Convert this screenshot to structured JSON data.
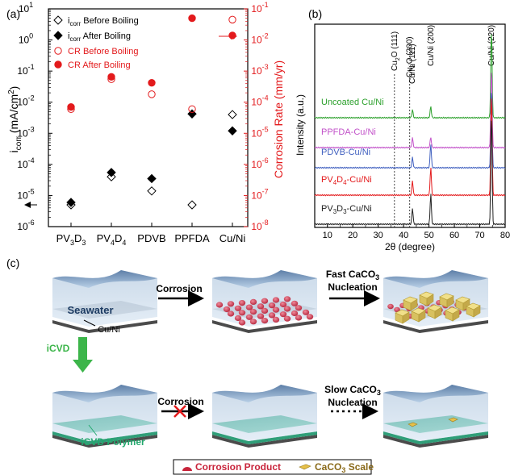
{
  "panels": {
    "a": "(a)",
    "b": "(b)",
    "c": "(c)"
  },
  "chart_data": [
    {
      "type": "scatter",
      "panel": "(a)",
      "categories": [
        "PV3D3",
        "PV4D4",
        "PDVB",
        "PPFDA",
        "Cu/Ni"
      ],
      "left_axis": {
        "label": "icorr (mA/cm2)",
        "scale": "log",
        "range": [
          1e-06,
          10
        ]
      },
      "right_axis": {
        "label": "Corrosion Rate (mm/yr)",
        "scale": "log",
        "range": [
          1e-08,
          0.1
        ],
        "color": "#e31a1c"
      },
      "series": [
        {
          "name": "icorr Before Boiling",
          "axis": "left",
          "marker": "open-diamond",
          "color": "#000000",
          "values": [
            5e-06,
            4e-05,
            1.4e-05,
            5e-06,
            0.004
          ]
        },
        {
          "name": "icorr After Boiling",
          "axis": "left",
          "marker": "filled-diamond",
          "color": "#000000",
          "values": [
            6e-06,
            5.5e-05,
            3.5e-05,
            0.0042,
            0.0012
          ]
        },
        {
          "name": "CR Before Boiling",
          "axis": "right",
          "marker": "open-circle",
          "color": "#e31a1c",
          "values": [
            6e-05,
            0.00055,
            0.00018,
            6e-05,
            0.045
          ]
        },
        {
          "name": "CR After Boiling",
          "axis": "right",
          "marker": "filled-circle",
          "color": "#e31a1c",
          "values": [
            7e-05,
            0.00065,
            0.00042,
            0.05,
            0.014
          ]
        }
      ],
      "legend_position": "top-left"
    },
    {
      "type": "line",
      "panel": "(b)",
      "xlabel": "2θ (degree)",
      "ylabel": "Intensity (a.u.)",
      "xlim": [
        5,
        80
      ],
      "xticks": [
        "10",
        "20",
        "30",
        "40",
        "50",
        "60",
        "70",
        "80"
      ],
      "reference_lines": [
        "Cu2O (111)",
        "Cu2O (200)",
        "Cu/Ni (111)",
        "Cu/Ni (200)",
        "Cu/Ni (220)"
      ],
      "peaks_deg": [
        43.5,
        50.7,
        74.6
      ],
      "series": [
        {
          "name": "Uncoated Cu/Ni",
          "color": "#2ca02c"
        },
        {
          "name": "PPFDA-Cu/Ni",
          "color": "#c252c9"
        },
        {
          "name": "PDVB-Cu/Ni",
          "color": "#3f5fbf"
        },
        {
          "name": "PV4D4-Cu/Ni",
          "color": "#e31a1c"
        },
        {
          "name": "PV3D3-Cu/Ni",
          "color": "#222222"
        }
      ]
    }
  ],
  "schematic": {
    "seawater": "Seawater",
    "substrate": "Cu/Ni",
    "corrosion_top": "Corrosion",
    "fast": "Fast CaCO3",
    "nucleation_top": "Nucleation",
    "icvd": "iCVD",
    "corrosion_bottom": "Corrosion",
    "slow": "Slow CaCO3",
    "nucleation_bottom": "Nucleation",
    "polymer": "iCVD Polymer",
    "legend_corrosion": "Corrosion Product",
    "legend_scale": "CaCO3 Scale"
  }
}
